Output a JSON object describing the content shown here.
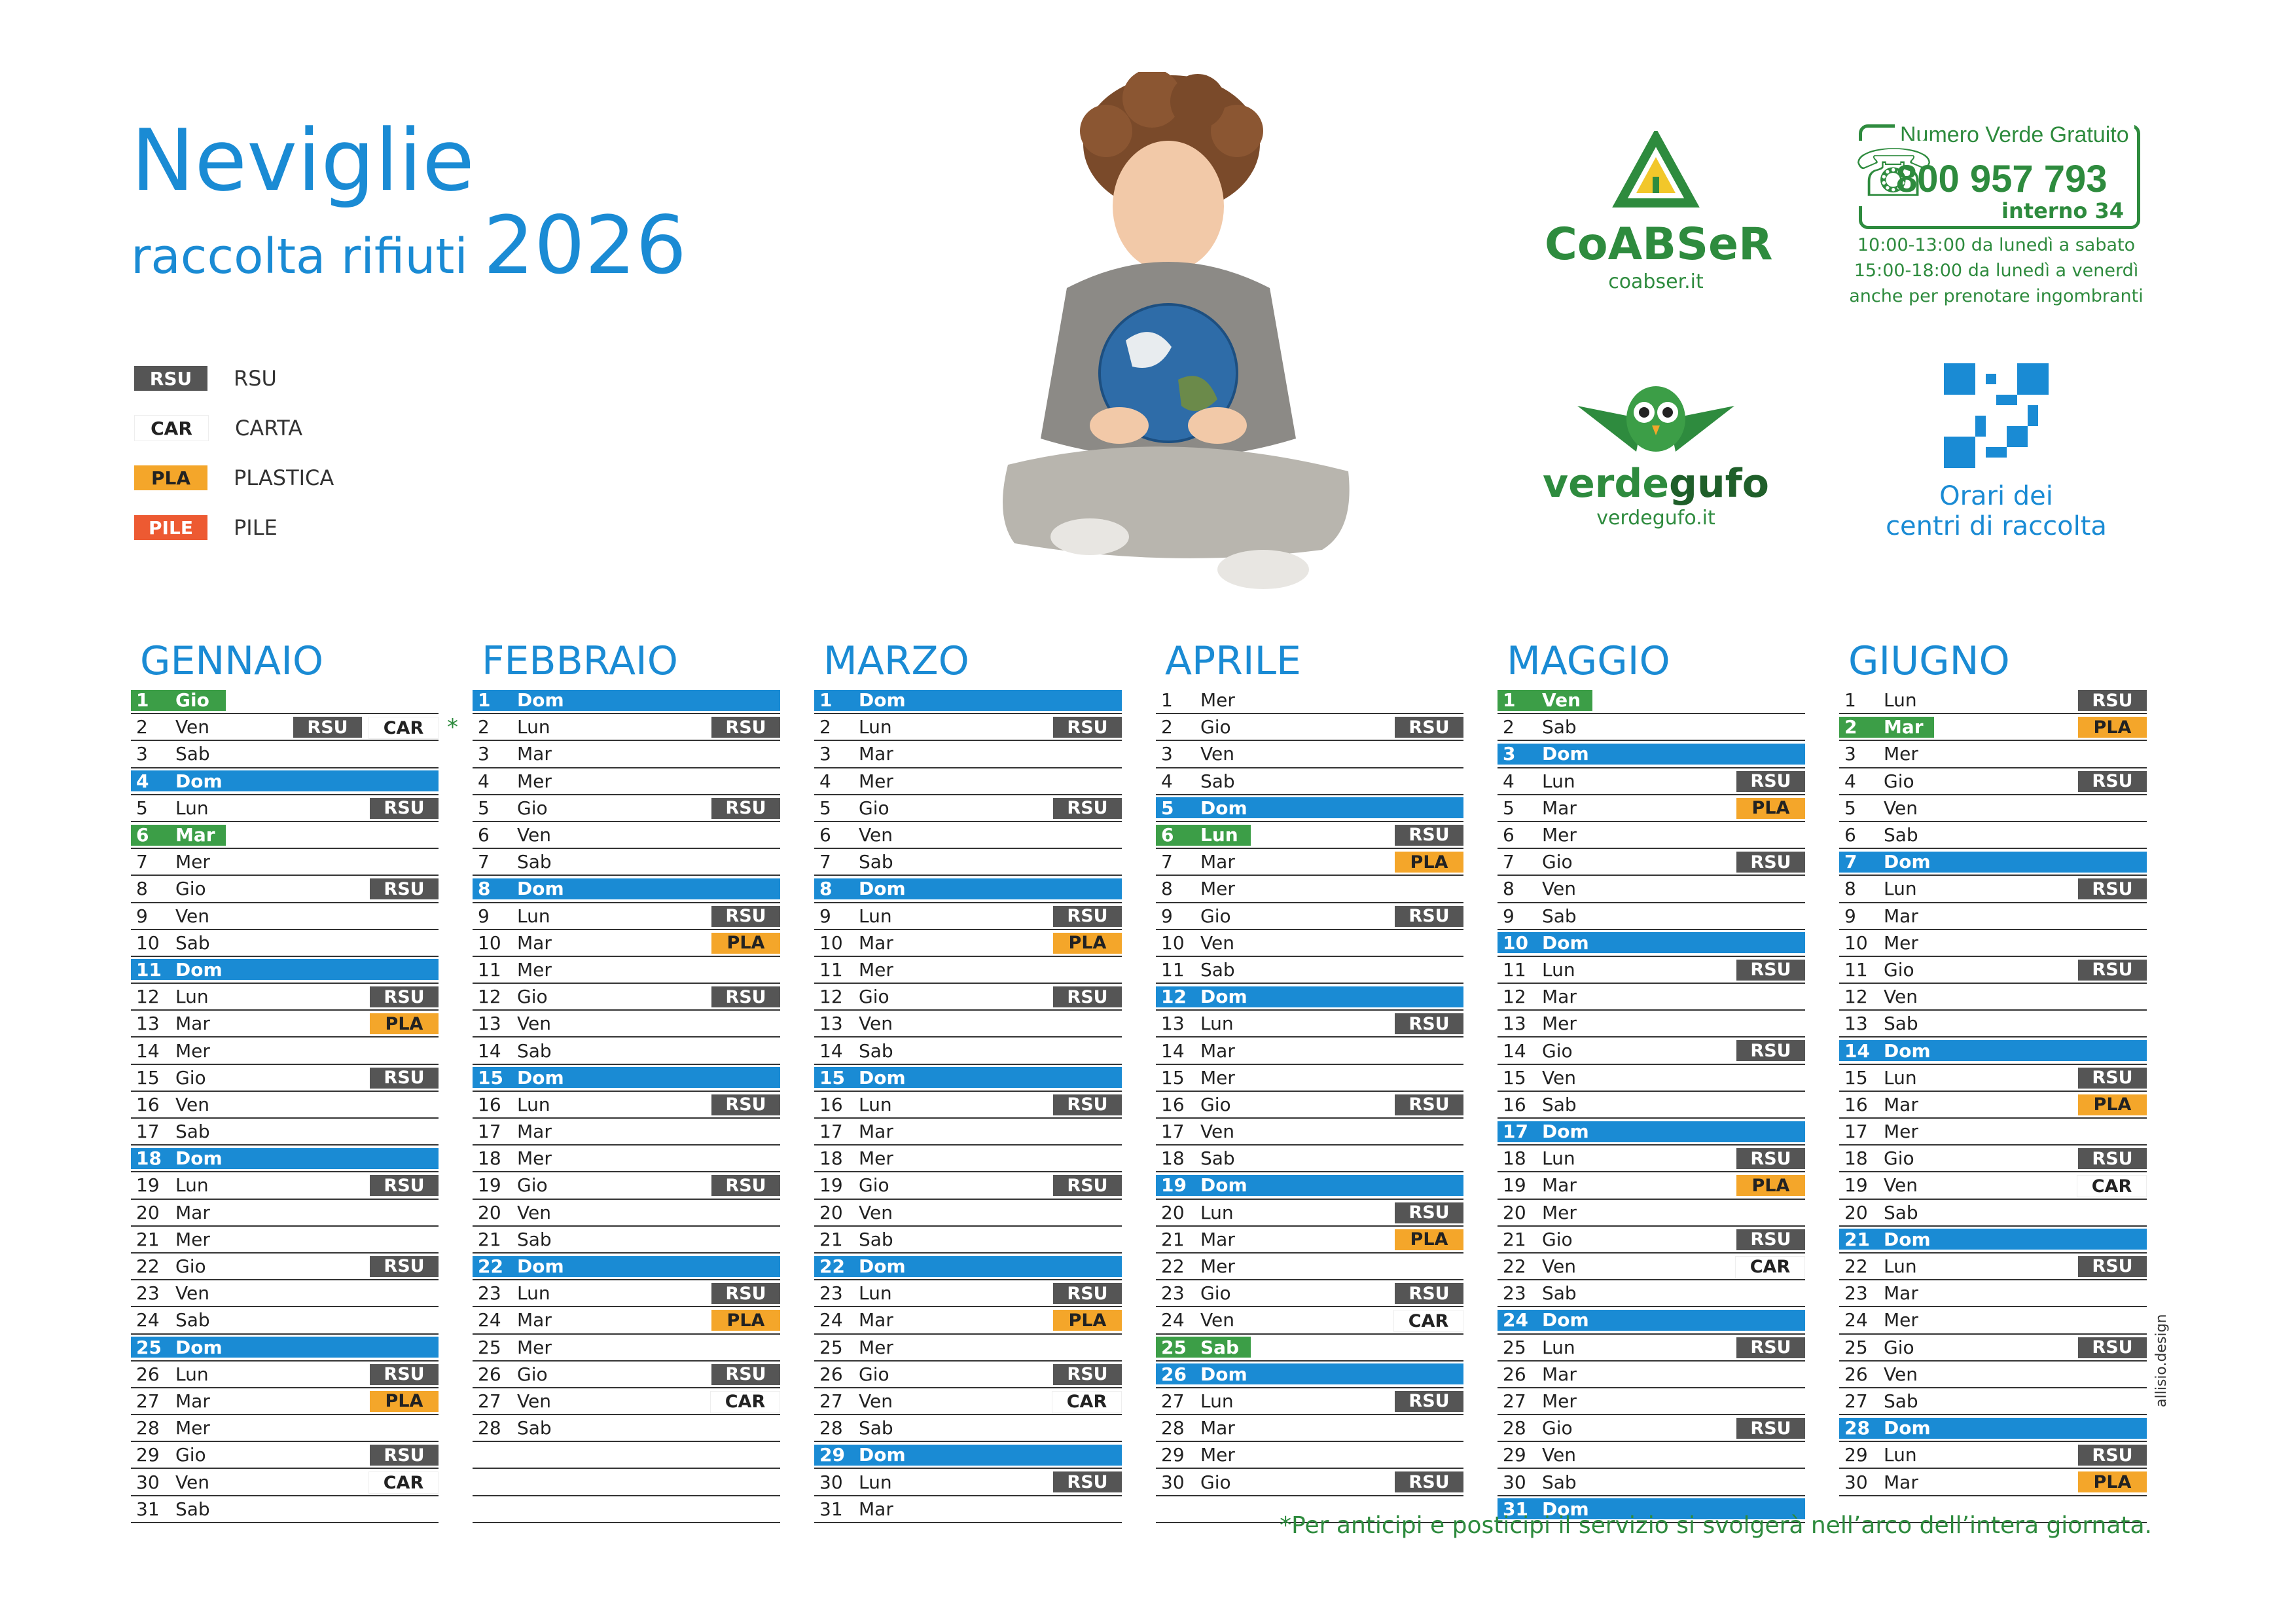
{
  "header": {
    "town": "Neviglie",
    "subtitle": "raccolta rifiuti",
    "year": "2026"
  },
  "legend": [
    {
      "code": "RSU",
      "label": "RSU"
    },
    {
      "code": "CAR",
      "label": "CARTA"
    },
    {
      "code": "PLA",
      "label": "PLASTICA"
    },
    {
      "code": "PILE",
      "label": "PILE"
    }
  ],
  "coabser": {
    "name": "CoABSeR",
    "site": "coabser.it"
  },
  "phone": {
    "title": "Numero Verde Gratuito",
    "number": "800 957 793",
    "ext": "interno 34",
    "hours": [
      "10:00-13:00 da lunedì a sabato",
      "15:00-18:00 da lunedì a venerdì",
      "anche per prenotare ingombranti"
    ]
  },
  "verdegufo": {
    "name_a": "verde",
    "name_b": "gufo",
    "site": "verdegufo.it"
  },
  "qr": {
    "label_a": "Orari dei",
    "label_b": "centri di raccolta"
  },
  "colors": {
    "blue": "#1a8bd4",
    "green": "#3c9e47",
    "rsu": "#555555",
    "pla": "#f4a62a",
    "pile": "#ed5a32"
  },
  "months": [
    {
      "name": "GENNAIO",
      "days": [
        [
          "1",
          "Gio",
          "hol",
          []
        ],
        [
          "2",
          "Ven",
          "",
          [
            "RSU",
            "CAR"
          ],
          "*"
        ],
        [
          "3",
          "Sab",
          "",
          []
        ],
        [
          "4",
          "Dom",
          "sun",
          []
        ],
        [
          "5",
          "Lun",
          "",
          [
            "RSU"
          ]
        ],
        [
          "6",
          "Mar",
          "hol",
          []
        ],
        [
          "7",
          "Mer",
          "",
          []
        ],
        [
          "8",
          "Gio",
          "",
          [
            "RSU"
          ]
        ],
        [
          "9",
          "Ven",
          "",
          []
        ],
        [
          "10",
          "Sab",
          "",
          []
        ],
        [
          "11",
          "Dom",
          "sun",
          []
        ],
        [
          "12",
          "Lun",
          "",
          [
            "RSU"
          ]
        ],
        [
          "13",
          "Mar",
          "",
          [
            "PLA"
          ]
        ],
        [
          "14",
          "Mer",
          "",
          []
        ],
        [
          "15",
          "Gio",
          "",
          [
            "RSU"
          ]
        ],
        [
          "16",
          "Ven",
          "",
          []
        ],
        [
          "17",
          "Sab",
          "",
          []
        ],
        [
          "18",
          "Dom",
          "sun",
          []
        ],
        [
          "19",
          "Lun",
          "",
          [
            "RSU"
          ]
        ],
        [
          "20",
          "Mar",
          "",
          []
        ],
        [
          "21",
          "Mer",
          "",
          []
        ],
        [
          "22",
          "Gio",
          "",
          [
            "RSU"
          ]
        ],
        [
          "23",
          "Ven",
          "",
          []
        ],
        [
          "24",
          "Sab",
          "",
          []
        ],
        [
          "25",
          "Dom",
          "sun",
          []
        ],
        [
          "26",
          "Lun",
          "",
          [
            "RSU"
          ]
        ],
        [
          "27",
          "Mar",
          "",
          [
            "PLA"
          ]
        ],
        [
          "28",
          "Mer",
          "",
          []
        ],
        [
          "29",
          "Gio",
          "",
          [
            "RSU"
          ]
        ],
        [
          "30",
          "Ven",
          "",
          [
            "CAR"
          ]
        ],
        [
          "31",
          "Sab",
          "",
          []
        ]
      ]
    },
    {
      "name": "FEBBRAIO",
      "days": [
        [
          "1",
          "Dom",
          "sun",
          []
        ],
        [
          "2",
          "Lun",
          "",
          [
            "RSU"
          ]
        ],
        [
          "3",
          "Mar",
          "",
          []
        ],
        [
          "4",
          "Mer",
          "",
          []
        ],
        [
          "5",
          "Gio",
          "",
          [
            "RSU"
          ]
        ],
        [
          "6",
          "Ven",
          "",
          []
        ],
        [
          "7",
          "Sab",
          "",
          []
        ],
        [
          "8",
          "Dom",
          "sun",
          []
        ],
        [
          "9",
          "Lun",
          "",
          [
            "RSU"
          ]
        ],
        [
          "10",
          "Mar",
          "",
          [
            "PLA"
          ]
        ],
        [
          "11",
          "Mer",
          "",
          []
        ],
        [
          "12",
          "Gio",
          "",
          [
            "RSU"
          ]
        ],
        [
          "13",
          "Ven",
          "",
          []
        ],
        [
          "14",
          "Sab",
          "",
          []
        ],
        [
          "15",
          "Dom",
          "sun",
          []
        ],
        [
          "16",
          "Lun",
          "",
          [
            "RSU"
          ]
        ],
        [
          "17",
          "Mar",
          "",
          []
        ],
        [
          "18",
          "Mer",
          "",
          []
        ],
        [
          "19",
          "Gio",
          "",
          [
            "RSU"
          ]
        ],
        [
          "20",
          "Ven",
          "",
          []
        ],
        [
          "21",
          "Sab",
          "",
          []
        ],
        [
          "22",
          "Dom",
          "sun",
          []
        ],
        [
          "23",
          "Lun",
          "",
          [
            "RSU"
          ]
        ],
        [
          "24",
          "Mar",
          "",
          [
            "PLA"
          ]
        ],
        [
          "25",
          "Mer",
          "",
          []
        ],
        [
          "26",
          "Gio",
          "",
          [
            "RSU"
          ]
        ],
        [
          "27",
          "Ven",
          "",
          [
            "CAR"
          ]
        ],
        [
          "28",
          "Sab",
          "",
          []
        ],
        [
          "",
          "",
          "",
          []
        ],
        [
          "",
          "",
          "",
          []
        ],
        [
          "",
          "",
          "",
          []
        ]
      ]
    },
    {
      "name": "MARZO",
      "days": [
        [
          "1",
          "Dom",
          "sun",
          []
        ],
        [
          "2",
          "Lun",
          "",
          [
            "RSU"
          ]
        ],
        [
          "3",
          "Mar",
          "",
          []
        ],
        [
          "4",
          "Mer",
          "",
          []
        ],
        [
          "5",
          "Gio",
          "",
          [
            "RSU"
          ]
        ],
        [
          "6",
          "Ven",
          "",
          []
        ],
        [
          "7",
          "Sab",
          "",
          []
        ],
        [
          "8",
          "Dom",
          "sun",
          []
        ],
        [
          "9",
          "Lun",
          "",
          [
            "RSU"
          ]
        ],
        [
          "10",
          "Mar",
          "",
          [
            "PLA"
          ]
        ],
        [
          "11",
          "Mer",
          "",
          []
        ],
        [
          "12",
          "Gio",
          "",
          [
            "RSU"
          ]
        ],
        [
          "13",
          "Ven",
          "",
          []
        ],
        [
          "14",
          "Sab",
          "",
          []
        ],
        [
          "15",
          "Dom",
          "sun",
          []
        ],
        [
          "16",
          "Lun",
          "",
          [
            "RSU"
          ]
        ],
        [
          "17",
          "Mar",
          "",
          []
        ],
        [
          "18",
          "Mer",
          "",
          []
        ],
        [
          "19",
          "Gio",
          "",
          [
            "RSU"
          ]
        ],
        [
          "20",
          "Ven",
          "",
          []
        ],
        [
          "21",
          "Sab",
          "",
          []
        ],
        [
          "22",
          "Dom",
          "sun",
          []
        ],
        [
          "23",
          "Lun",
          "",
          [
            "RSU"
          ]
        ],
        [
          "24",
          "Mar",
          "",
          [
            "PLA"
          ]
        ],
        [
          "25",
          "Mer",
          "",
          []
        ],
        [
          "26",
          "Gio",
          "",
          [
            "RSU"
          ]
        ],
        [
          "27",
          "Ven",
          "",
          [
            "CAR"
          ]
        ],
        [
          "28",
          "Sab",
          "",
          []
        ],
        [
          "29",
          "Dom",
          "sun",
          []
        ],
        [
          "30",
          "Lun",
          "",
          [
            "RSU"
          ]
        ],
        [
          "31",
          "Mar",
          "",
          []
        ]
      ]
    },
    {
      "name": "APRILE",
      "days": [
        [
          "1",
          "Mer",
          "",
          []
        ],
        [
          "2",
          "Gio",
          "",
          [
            "RSU"
          ]
        ],
        [
          "3",
          "Ven",
          "",
          []
        ],
        [
          "4",
          "Sab",
          "",
          []
        ],
        [
          "5",
          "Dom",
          "sun",
          []
        ],
        [
          "6",
          "Lun",
          "hol",
          [
            "RSU"
          ]
        ],
        [
          "7",
          "Mar",
          "",
          [
            "PLA"
          ]
        ],
        [
          "8",
          "Mer",
          "",
          []
        ],
        [
          "9",
          "Gio",
          "",
          [
            "RSU"
          ]
        ],
        [
          "10",
          "Ven",
          "",
          []
        ],
        [
          "11",
          "Sab",
          "",
          []
        ],
        [
          "12",
          "Dom",
          "sun",
          []
        ],
        [
          "13",
          "Lun",
          "",
          [
            "RSU"
          ]
        ],
        [
          "14",
          "Mar",
          "",
          []
        ],
        [
          "15",
          "Mer",
          "",
          []
        ],
        [
          "16",
          "Gio",
          "",
          [
            "RSU"
          ]
        ],
        [
          "17",
          "Ven",
          "",
          []
        ],
        [
          "18",
          "Sab",
          "",
          []
        ],
        [
          "19",
          "Dom",
          "sun",
          []
        ],
        [
          "20",
          "Lun",
          "",
          [
            "RSU"
          ]
        ],
        [
          "21",
          "Mar",
          "",
          [
            "PLA"
          ]
        ],
        [
          "22",
          "Mer",
          "",
          []
        ],
        [
          "23",
          "Gio",
          "",
          [
            "RSU"
          ]
        ],
        [
          "24",
          "Ven",
          "",
          [
            "CAR"
          ]
        ],
        [
          "25",
          "Sab",
          "hol",
          []
        ],
        [
          "26",
          "Dom",
          "sun",
          []
        ],
        [
          "27",
          "Lun",
          "",
          [
            "RSU"
          ]
        ],
        [
          "28",
          "Mar",
          "",
          []
        ],
        [
          "29",
          "Mer",
          "",
          []
        ],
        [
          "30",
          "Gio",
          "",
          [
            "RSU"
          ]
        ],
        [
          "",
          "",
          "",
          []
        ]
      ]
    },
    {
      "name": "MAGGIO",
      "days": [
        [
          "1",
          "Ven",
          "hol",
          []
        ],
        [
          "2",
          "Sab",
          "",
          []
        ],
        [
          "3",
          "Dom",
          "sun",
          []
        ],
        [
          "4",
          "Lun",
          "",
          [
            "RSU"
          ]
        ],
        [
          "5",
          "Mar",
          "",
          [
            "PLA"
          ]
        ],
        [
          "6",
          "Mer",
          "",
          []
        ],
        [
          "7",
          "Gio",
          "",
          [
            "RSU"
          ]
        ],
        [
          "8",
          "Ven",
          "",
          []
        ],
        [
          "9",
          "Sab",
          "",
          []
        ],
        [
          "10",
          "Dom",
          "sun",
          []
        ],
        [
          "11",
          "Lun",
          "",
          [
            "RSU"
          ]
        ],
        [
          "12",
          "Mar",
          "",
          []
        ],
        [
          "13",
          "Mer",
          "",
          []
        ],
        [
          "14",
          "Gio",
          "",
          [
            "RSU"
          ]
        ],
        [
          "15",
          "Ven",
          "",
          []
        ],
        [
          "16",
          "Sab",
          "",
          []
        ],
        [
          "17",
          "Dom",
          "sun",
          []
        ],
        [
          "18",
          "Lun",
          "",
          [
            "RSU"
          ]
        ],
        [
          "19",
          "Mar",
          "",
          [
            "PLA"
          ]
        ],
        [
          "20",
          "Mer",
          "",
          []
        ],
        [
          "21",
          "Gio",
          "",
          [
            "RSU"
          ]
        ],
        [
          "22",
          "Ven",
          "",
          [
            "CAR"
          ]
        ],
        [
          "23",
          "Sab",
          "",
          []
        ],
        [
          "24",
          "Dom",
          "sun",
          []
        ],
        [
          "25",
          "Lun",
          "",
          [
            "RSU"
          ]
        ],
        [
          "26",
          "Mar",
          "",
          []
        ],
        [
          "27",
          "Mer",
          "",
          []
        ],
        [
          "28",
          "Gio",
          "",
          [
            "RSU"
          ]
        ],
        [
          "29",
          "Ven",
          "",
          []
        ],
        [
          "30",
          "Sab",
          "",
          []
        ],
        [
          "31",
          "Dom",
          "sun",
          []
        ]
      ]
    },
    {
      "name": "GIUGNO",
      "days": [
        [
          "1",
          "Lun",
          "",
          [
            "RSU"
          ]
        ],
        [
          "2",
          "Mar",
          "hol",
          [
            "PLA"
          ]
        ],
        [
          "3",
          "Mer",
          "",
          []
        ],
        [
          "4",
          "Gio",
          "",
          [
            "RSU"
          ]
        ],
        [
          "5",
          "Ven",
          "",
          []
        ],
        [
          "6",
          "Sab",
          "",
          []
        ],
        [
          "7",
          "Dom",
          "sun",
          []
        ],
        [
          "8",
          "Lun",
          "",
          [
            "RSU"
          ]
        ],
        [
          "9",
          "Mar",
          "",
          []
        ],
        [
          "10",
          "Mer",
          "",
          []
        ],
        [
          "11",
          "Gio",
          "",
          [
            "RSU"
          ]
        ],
        [
          "12",
          "Ven",
          "",
          []
        ],
        [
          "13",
          "Sab",
          "",
          []
        ],
        [
          "14",
          "Dom",
          "sun",
          []
        ],
        [
          "15",
          "Lun",
          "",
          [
            "RSU"
          ]
        ],
        [
          "16",
          "Mar",
          "",
          [
            "PLA"
          ]
        ],
        [
          "17",
          "Mer",
          "",
          []
        ],
        [
          "18",
          "Gio",
          "",
          [
            "RSU"
          ]
        ],
        [
          "19",
          "Ven",
          "",
          [
            "CAR"
          ]
        ],
        [
          "20",
          "Sab",
          "",
          []
        ],
        [
          "21",
          "Dom",
          "sun",
          []
        ],
        [
          "22",
          "Lun",
          "",
          [
            "RSU"
          ]
        ],
        [
          "23",
          "Mar",
          "",
          []
        ],
        [
          "24",
          "Mer",
          "",
          []
        ],
        [
          "25",
          "Gio",
          "",
          [
            "RSU"
          ]
        ],
        [
          "26",
          "Ven",
          "",
          []
        ],
        [
          "27",
          "Sab",
          "",
          []
        ],
        [
          "28",
          "Dom",
          "sun",
          []
        ],
        [
          "29",
          "Lun",
          "",
          [
            "RSU"
          ]
        ],
        [
          "30",
          "Mar",
          "",
          [
            "PLA"
          ]
        ],
        [
          "",
          "",
          "",
          []
        ]
      ]
    }
  ],
  "footnote": "*Per anticipi e posticipi il servizio si svolgerà nell’arco dell’intera giornata.",
  "designer": "allisio.design"
}
